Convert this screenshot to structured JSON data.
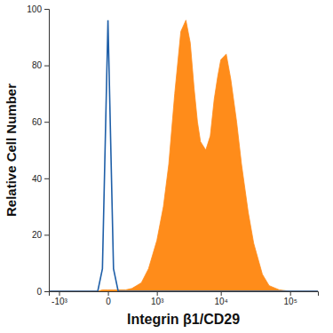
{
  "chart_data": {
    "type": "area",
    "x_label": "Integrin β1/CD29",
    "y_label": "Relative Cell Number",
    "log": "x",
    "x": [
      -1500,
      -1000,
      -500,
      -200,
      -100,
      -50,
      0,
      50,
      100,
      200,
      300,
      500,
      700,
      1000,
      1300,
      1600,
      2000,
      2500,
      3000,
      3500,
      4000,
      4500,
      5000,
      6000,
      7000,
      8000,
      9000,
      10000,
      12000,
      14000,
      17000,
      20000,
      25000,
      30000,
      40000,
      50000,
      70000,
      100000,
      150000,
      250000
    ],
    "series": [
      {
        "type": "area",
        "color": "#ff8c1a",
        "values": [
          0,
          0,
          0,
          0,
          0,
          0.5,
          0.5,
          0.5,
          0.5,
          0.5,
          1,
          3,
          8,
          18,
          30,
          45,
          70,
          92,
          96,
          88,
          72,
          60,
          53,
          50,
          55,
          68,
          76,
          82,
          84,
          75,
          60,
          45,
          28,
          17,
          6,
          2,
          0.5,
          0,
          0,
          0
        ]
      },
      {
        "type": "line",
        "color": "#1f5fa8",
        "values": [
          0,
          0,
          0,
          0,
          0,
          8,
          96,
          8,
          0,
          0,
          0,
          0,
          0,
          0,
          0,
          0,
          0,
          0,
          0,
          0,
          0,
          0,
          0,
          0,
          0,
          0,
          0,
          0,
          0,
          0,
          0,
          0,
          0,
          0,
          0,
          0,
          0,
          0,
          0,
          0
        ]
      }
    ],
    "xlim": [
      -1500,
      250000
    ],
    "xticks": [
      {
        "value": -1000,
        "label": "-10³"
      },
      0,
      {
        "value": 1000,
        "label": "10³"
      },
      {
        "value": 10000,
        "label": "10⁴"
      },
      {
        "value": 100000,
        "label": "10⁵"
      }
    ],
    "ylim": [
      0,
      100
    ],
    "yticks": [
      0,
      20,
      40,
      60,
      80,
      100
    ],
    "grid": false
  }
}
